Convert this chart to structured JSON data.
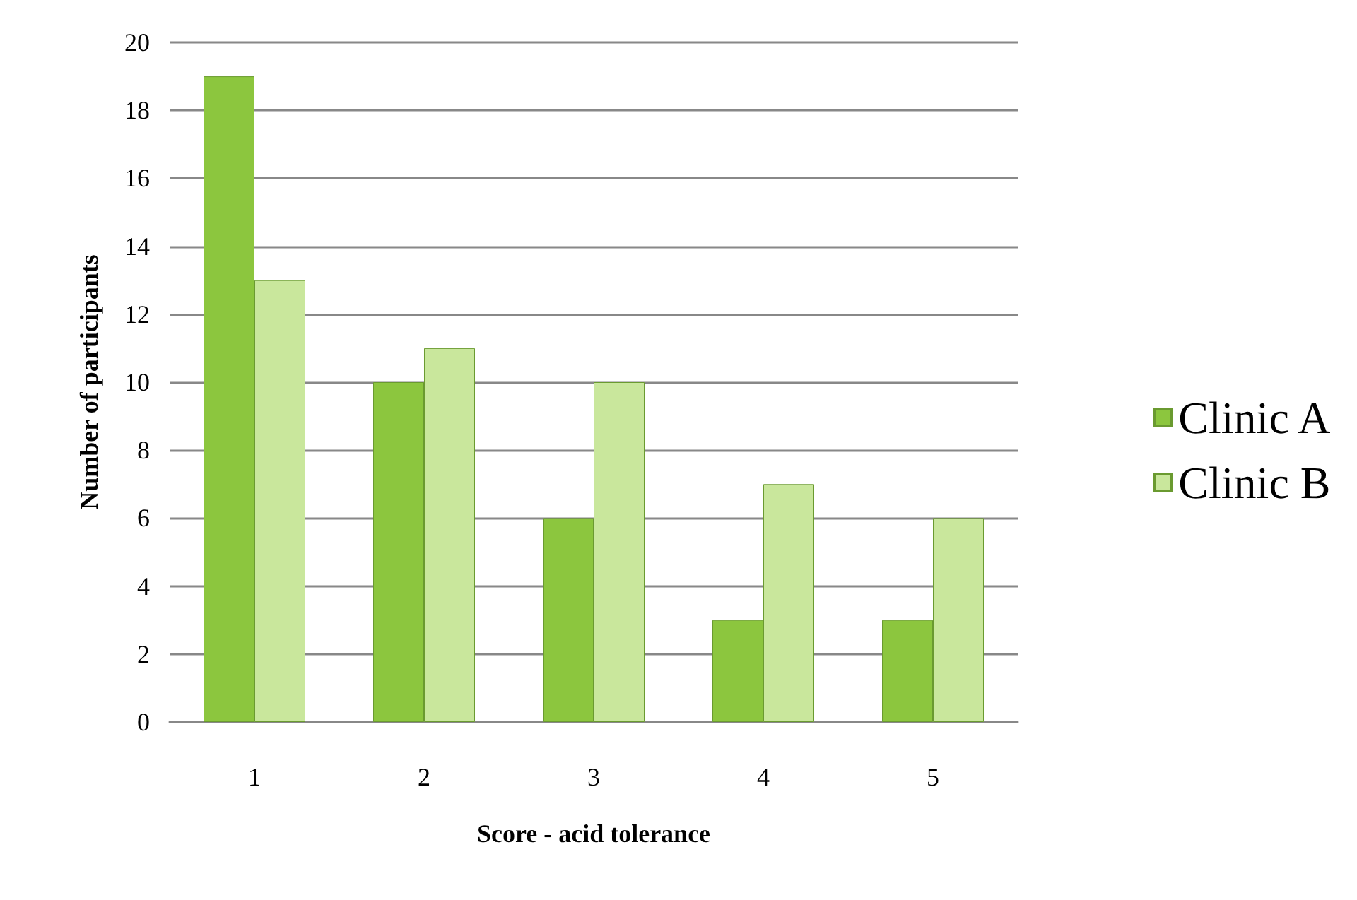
{
  "chart_data": {
    "type": "bar",
    "xlabel": "Score - acid tolerance",
    "ylabel": "Number of participants",
    "categories": [
      "1",
      "2",
      "3",
      "4",
      "5"
    ],
    "series": [
      {
        "name": "Clinic A",
        "color": "#8cc63e",
        "values": [
          19,
          10,
          6,
          3,
          3
        ]
      },
      {
        "name": "Clinic B",
        "color": "#c9e79c",
        "values": [
          13,
          11,
          10,
          7,
          6
        ]
      }
    ],
    "ylim": [
      0,
      20
    ],
    "yticks": [
      0,
      2,
      4,
      6,
      8,
      10,
      12,
      14,
      16,
      18,
      20
    ],
    "grid": "y",
    "legend": "right"
  }
}
